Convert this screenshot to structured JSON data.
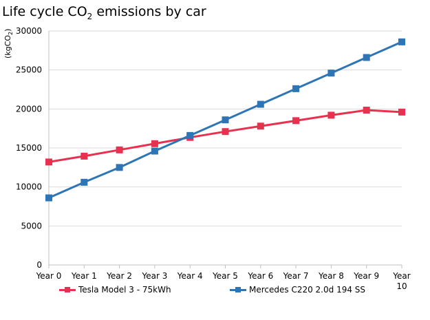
{
  "title": {
    "prefix": "Life cycle CO",
    "sub": "2",
    "suffix": " emissions by car"
  },
  "chart_data": {
    "type": "line",
    "ylabel": {
      "prefix": "(kgCO",
      "sub": "2",
      "suffix": ")"
    },
    "categories": [
      "Year 0",
      "Year 1",
      "Year 2",
      "Year 3",
      "Year 4",
      "Year 5",
      "Year 6",
      "Year 7",
      "Year 8",
      "Year 9",
      "Year 10"
    ],
    "ylim": [
      0,
      30000
    ],
    "yticks": [
      0,
      5000,
      10000,
      15000,
      20000,
      25000,
      30000
    ],
    "grid": true,
    "legend_position": "bottom",
    "series": [
      {
        "name": "Tesla Model 3 - 75kWh",
        "color": "#e8304f",
        "values": [
          13200,
          13950,
          14750,
          15550,
          16350,
          17100,
          17800,
          18500,
          19200,
          19850,
          19600
        ]
      },
      {
        "name": "Mercedes C220 2.0d 194 SS",
        "color": "#2e75b6",
        "values": [
          8600,
          10600,
          12500,
          14600,
          16600,
          18600,
          20600,
          22600,
          24600,
          26600,
          28600
        ]
      }
    ]
  }
}
